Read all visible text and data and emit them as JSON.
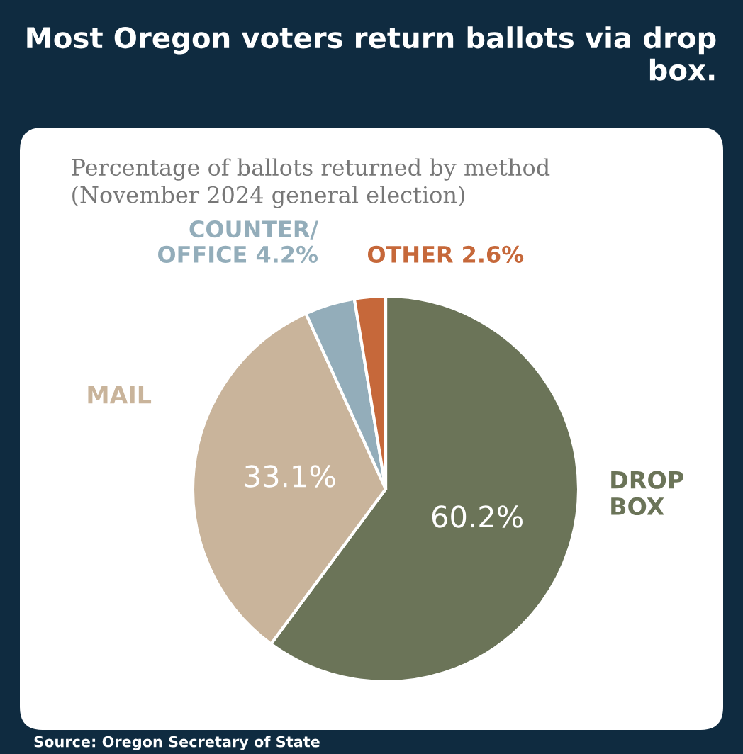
{
  "chart_data": {
    "type": "pie",
    "title": "Most Oregon voters return ballots via drop box.",
    "subtitle": "Percentage of ballots returned by method\n(November 2024 general election)",
    "categories": [
      "DROP BOX",
      "MAIL",
      "COUNTER/OFFICE",
      "OTHER"
    ],
    "values": [
      60.2,
      33.1,
      4.2,
      2.6
    ],
    "value_labels": [
      "60.2%",
      "33.1%",
      "4.2%",
      "2.6%"
    ],
    "colors": [
      "#6b7458",
      "#c9b49b",
      "#93adba",
      "#c6683a"
    ],
    "annotations": [
      "Source: Oregon Secretary of State"
    ],
    "legend": false
  }
}
